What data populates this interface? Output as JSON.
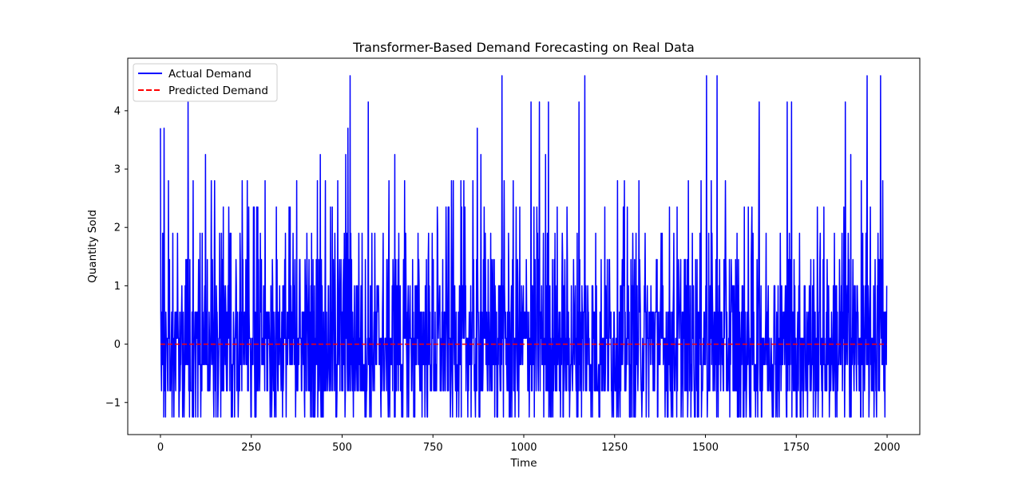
{
  "chart_data": {
    "type": "line",
    "title": "Transformer-Based Demand Forecasting on Real Data",
    "xlabel": "Time",
    "ylabel": "Quantity Sold",
    "xlim": [
      -90,
      2090
    ],
    "ylim": [
      -1.55,
      4.9
    ],
    "xticks": [
      0,
      250,
      500,
      750,
      1000,
      1250,
      1500,
      1750,
      2000
    ],
    "yticks": [
      -1,
      0,
      1,
      2,
      3,
      4
    ],
    "xtick_labels": [
      "0",
      "250",
      "500",
      "750",
      "1000",
      "1250",
      "1500",
      "1750",
      "2000"
    ],
    "ytick_labels": [
      "−1",
      "0",
      "1",
      "2",
      "3",
      "4"
    ],
    "legend_position": "upper-left",
    "grid": false,
    "series": [
      {
        "name": "Actual Demand",
        "color": "#0000ff",
        "style": "solid",
        "n_points": 2000,
        "value_levels": [
          -1.25,
          -0.8,
          -0.35,
          0.1,
          0.55,
          1.0,
          1.45,
          1.9,
          2.35,
          2.8,
          3.25,
          3.7,
          4.15,
          4.6
        ],
        "peaks": [
          {
            "x": 0,
            "y": 3.7
          },
          {
            "x": 10,
            "y": 3.7
          },
          {
            "x": 22,
            "y": 2.8
          },
          {
            "x": 76,
            "y": 4.15
          },
          {
            "x": 90,
            "y": 2.8
          },
          {
            "x": 124,
            "y": 3.25
          },
          {
            "x": 140,
            "y": 2.8
          },
          {
            "x": 225,
            "y": 2.8
          },
          {
            "x": 375,
            "y": 2.8
          },
          {
            "x": 432,
            "y": 2.8
          },
          {
            "x": 440,
            "y": 3.25
          },
          {
            "x": 488,
            "y": 2.8
          },
          {
            "x": 510,
            "y": 3.25
          },
          {
            "x": 516,
            "y": 3.7
          },
          {
            "x": 522,
            "y": 4.6
          },
          {
            "x": 572,
            "y": 4.15
          },
          {
            "x": 645,
            "y": 3.25
          },
          {
            "x": 835,
            "y": 2.8
          },
          {
            "x": 872,
            "y": 3.7
          },
          {
            "x": 882,
            "y": 3.25
          },
          {
            "x": 940,
            "y": 4.6
          },
          {
            "x": 1020,
            "y": 4.15
          },
          {
            "x": 1043,
            "y": 4.15
          },
          {
            "x": 1060,
            "y": 3.25
          },
          {
            "x": 1068,
            "y": 4.15
          },
          {
            "x": 1152,
            "y": 4.15
          },
          {
            "x": 1168,
            "y": 4.6
          },
          {
            "x": 1503,
            "y": 4.6
          },
          {
            "x": 1532,
            "y": 4.6
          },
          {
            "x": 1648,
            "y": 4.15
          },
          {
            "x": 1725,
            "y": 4.15
          },
          {
            "x": 1737,
            "y": 4.15
          },
          {
            "x": 1885,
            "y": 4.15
          },
          {
            "x": 1900,
            "y": 3.25
          },
          {
            "x": 1945,
            "y": 4.6
          },
          {
            "x": 1982,
            "y": 4.6
          },
          {
            "x": 1988,
            "y": 2.8
          }
        ]
      },
      {
        "name": "Predicted Demand",
        "color": "#ff0000",
        "style": "dashed",
        "x": [
          0,
          1999
        ],
        "values": [
          0.0,
          0.0
        ]
      }
    ]
  }
}
